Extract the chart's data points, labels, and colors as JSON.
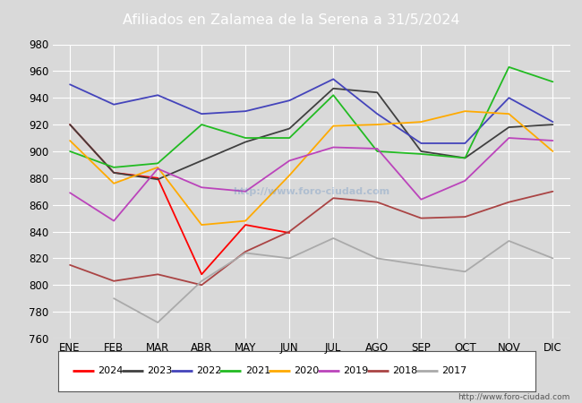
{
  "title": "Afiliados en Zalamea de la Serena a 31/5/2024",
  "ylim": [
    760,
    980
  ],
  "yticks": [
    760,
    780,
    800,
    820,
    840,
    860,
    880,
    900,
    920,
    940,
    960,
    980
  ],
  "months": [
    "ENE",
    "FEB",
    "MAR",
    "ABR",
    "MAY",
    "JUN",
    "JUL",
    "AGO",
    "SEP",
    "OCT",
    "NOV",
    "DIC"
  ],
  "title_bg_color": "#4f81bd",
  "title_color": "#ffffff",
  "plot_bg_color": "#d9d9d9",
  "fig_bg_color": "#d9d9d9",
  "grid_color": "#ffffff",
  "watermark": "http://www.foro-ciudad.com",
  "series": {
    "2024": {
      "color": "#ff0000",
      "data": [
        920,
        884,
        880,
        808,
        845,
        839,
        null,
        null,
        null,
        null,
        null,
        null
      ]
    },
    "2023": {
      "color": "#404040",
      "data": [
        920,
        884,
        879,
        893,
        907,
        917,
        947,
        944,
        900,
        895,
        918,
        920
      ]
    },
    "2022": {
      "color": "#4444bb",
      "data": [
        950,
        935,
        942,
        928,
        930,
        938,
        954,
        928,
        906,
        906,
        940,
        922
      ]
    },
    "2021": {
      "color": "#22bb22",
      "data": [
        900,
        888,
        891,
        920,
        910,
        910,
        942,
        900,
        898,
        895,
        963,
        952
      ]
    },
    "2020": {
      "color": "#ffaa00",
      "data": [
        908,
        876,
        888,
        845,
        848,
        882,
        919,
        920,
        922,
        930,
        928,
        900
      ]
    },
    "2019": {
      "color": "#bb44bb",
      "data": [
        869,
        848,
        887,
        873,
        870,
        893,
        903,
        902,
        864,
        878,
        910,
        908
      ]
    },
    "2018": {
      "color": "#aa4444",
      "data": [
        815,
        803,
        808,
        800,
        825,
        840,
        865,
        862,
        850,
        851,
        862,
        870
      ]
    },
    "2017": {
      "color": "#aaaaaa",
      "data": [
        null,
        790,
        772,
        803,
        824,
        820,
        835,
        820,
        815,
        810,
        833,
        820
      ]
    }
  },
  "legend_order": [
    "2024",
    "2023",
    "2022",
    "2021",
    "2020",
    "2019",
    "2018",
    "2017"
  ]
}
